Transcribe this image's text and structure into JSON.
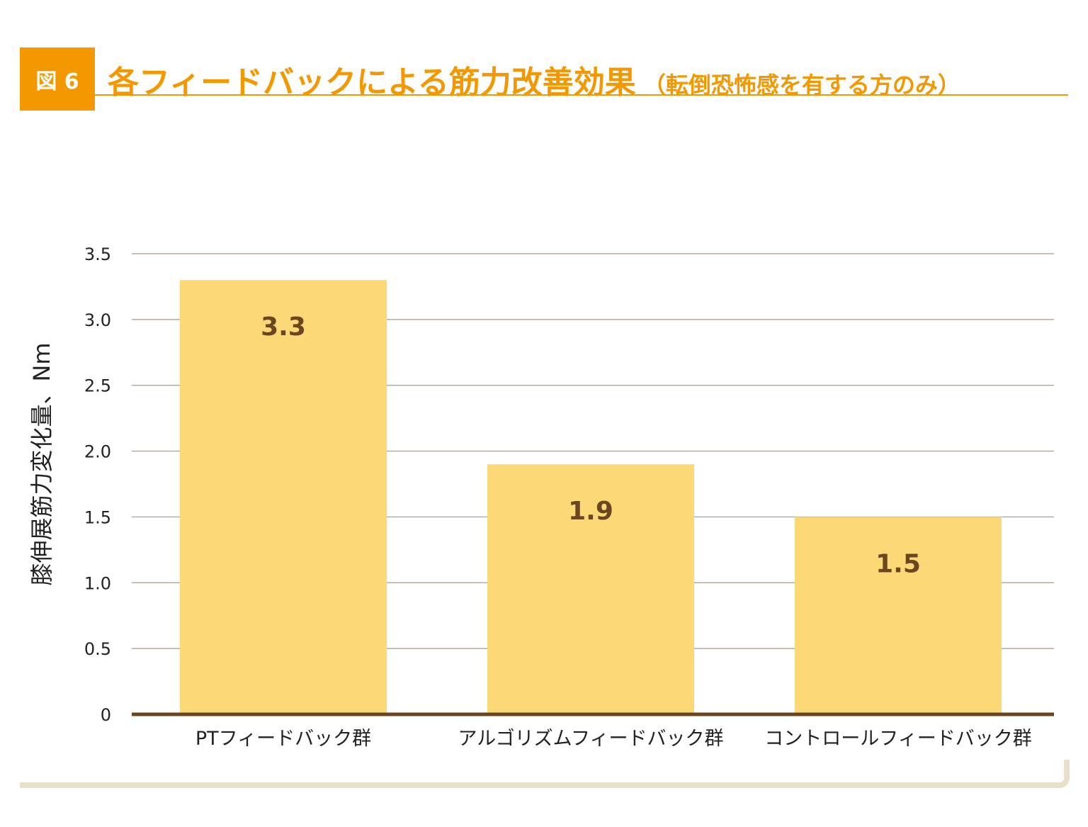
{
  "figure_label": "図 6",
  "title": "各フィードバックによる筋力改善効果",
  "subtitle": "（転倒恐怖感を有する方のみ）",
  "colors": {
    "accent": "#f39800",
    "bar": "#fdd877",
    "bar_label": "#6b4420",
    "baseline": "#6b4420",
    "grid": "#a89a8a",
    "text": "#222222",
    "frame": "#e8e0c8"
  },
  "chart_data": {
    "type": "bar",
    "categories": [
      "PTフィードバック群",
      "アルゴリズムフィードバック群",
      "コントロールフィードバック群"
    ],
    "values": [
      3.3,
      1.9,
      1.5
    ],
    "value_labels": [
      "3.3",
      "1.9",
      "1.5"
    ],
    "ylabel": "膝伸展筋力変化量、Nm",
    "xlabel": "",
    "ylim": [
      0,
      3.5
    ],
    "yticks": [
      0,
      0.5,
      1.0,
      1.5,
      2.0,
      2.5,
      3.0,
      3.5
    ],
    "ytick_labels": [
      "0",
      "0.5",
      "1.0",
      "1.5",
      "2.0",
      "2.5",
      "3.0",
      "3.5"
    ],
    "grid": true,
    "legend": "none"
  }
}
